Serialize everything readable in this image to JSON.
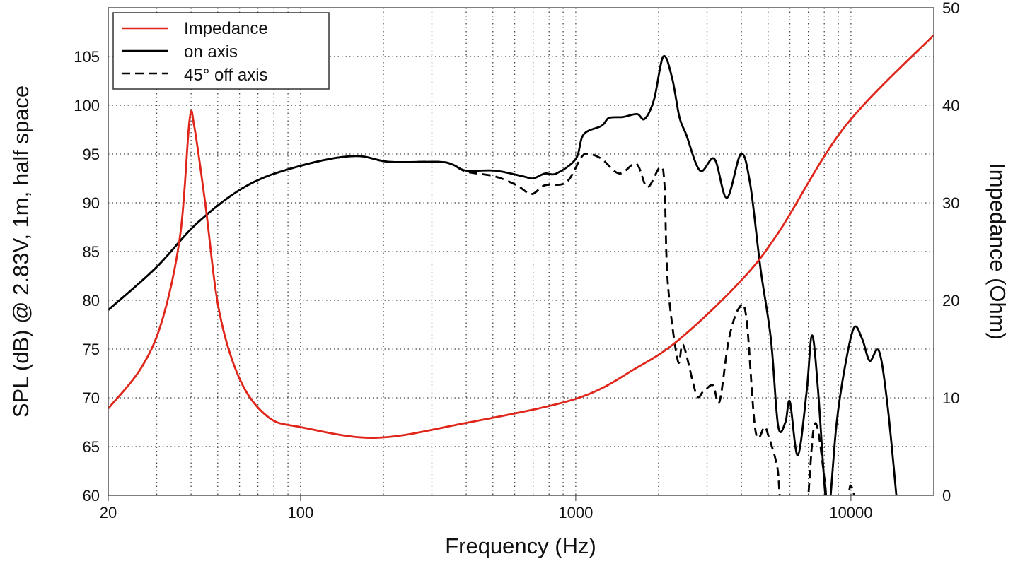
{
  "chart_data": {
    "type": "line",
    "xlabel": "Frequency (Hz)",
    "ylabel": "SPL (dB) @ 2.83V, 1m, half space",
    "y2label": "Impedance (Ohm)",
    "xscale": "log",
    "xlim": [
      20,
      20000
    ],
    "ylim": [
      60,
      110
    ],
    "y2lim": [
      0,
      50
    ],
    "grid": true,
    "legend_position": "top-left",
    "x_ticks": [
      20,
      100,
      1000,
      10000
    ],
    "y_ticks": [
      60,
      65,
      70,
      75,
      80,
      85,
      90,
      95,
      100,
      105
    ],
    "y2_ticks": [
      0,
      10,
      20,
      30,
      40,
      50
    ],
    "series": [
      {
        "name": "Impedance",
        "axis": "right",
        "color": "#e0261b",
        "style": "solid",
        "x": [
          20,
          26.4,
          31.6,
          36.6,
          39.5,
          41.1,
          45.1,
          50.6,
          60.6,
          76.5,
          100,
          186,
          379,
          1000,
          1670,
          2380,
          3920,
          5440,
          9500,
          20000
        ],
        "y": [
          8.9,
          13.1,
          18.2,
          26.9,
          38.5,
          37.8,
          29.8,
          18.9,
          11.7,
          8.0,
          7.0,
          5.9,
          7.3,
          9.9,
          13.1,
          16.0,
          21.8,
          26.9,
          37.8,
          47.2
        ]
      },
      {
        "name": "on axis",
        "axis": "left",
        "color": "#000000",
        "style": "solid",
        "x": [
          20,
          29.7,
          42.4,
          64.2,
          100,
          156,
          210,
          318,
          358,
          400,
          509,
          646,
          700,
          772,
          850,
          1000,
          1068,
          1242,
          1320,
          1482,
          1670,
          1780,
          1926,
          2080,
          2240,
          2380,
          2520,
          2830,
          3190,
          3540,
          3980,
          4300,
          4690,
          5120,
          5440,
          5780,
          6000,
          6410,
          6900,
          7220,
          7590,
          8030,
          8300,
          8860,
          9500,
          10270,
          11000,
          11700,
          12640,
          13550,
          14660
        ],
        "y": [
          79.0,
          83.3,
          88.0,
          91.8,
          93.8,
          94.8,
          94.2,
          94.2,
          93.9,
          93.3,
          93.3,
          92.7,
          92.5,
          93.0,
          93.0,
          94.5,
          97.0,
          97.9,
          98.7,
          98.8,
          99.1,
          98.6,
          100.6,
          105.0,
          102.8,
          98.8,
          97.0,
          93.3,
          94.5,
          90.5,
          95.0,
          92.0,
          83.3,
          76.0,
          67.1,
          67.5,
          69.6,
          64.1,
          70.6,
          76.4,
          70.9,
          60.8,
          58.0,
          67.3,
          73.1,
          77.2,
          76.0,
          73.8,
          74.8,
          69.5,
          59.7
        ]
      },
      {
        "name": "45° off axis",
        "axis": "left",
        "color": "#000000",
        "style": "dashed",
        "x": [
          20,
          29.7,
          42.4,
          64.2,
          100,
          156,
          210,
          318,
          358,
          400,
          509,
          610,
          690,
          772,
          924,
          1050,
          1120,
          1242,
          1440,
          1660,
          1820,
          2020,
          2100,
          2160,
          2350,
          2460,
          2740,
          2900,
          3150,
          3330,
          3600,
          3920,
          4170,
          4500,
          4850,
          5000,
          5390,
          5520,
          5700,
          6800,
          6990,
          7300,
          7590,
          8030,
          8300,
          9400,
          9800,
          10000,
          10400
        ],
        "y": [
          79.0,
          83.3,
          88.0,
          91.8,
          93.8,
          94.8,
          94.2,
          94.2,
          93.9,
          93.2,
          92.7,
          91.8,
          90.9,
          91.8,
          92.1,
          94.7,
          95.0,
          94.5,
          93.0,
          94.0,
          91.6,
          93.6,
          92.0,
          81.8,
          73.8,
          75.4,
          70.4,
          70.6,
          71.3,
          69.6,
          76.0,
          79.2,
          78.2,
          66.6,
          67.0,
          66.2,
          63.0,
          59.7,
          56.0,
          56.0,
          59.7,
          66.6,
          66.7,
          61.5,
          58.5,
          57.0,
          60.0,
          61.0,
          59.5
        ]
      }
    ]
  }
}
